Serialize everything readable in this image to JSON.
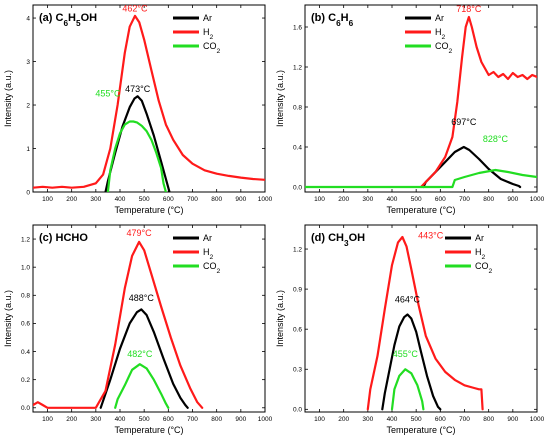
{
  "colors": {
    "Ar": "#000000",
    "H2": "#ff1a1a",
    "CO2": "#22dd22"
  },
  "chart_data": [
    {
      "type": "line",
      "panel_label": "(a)",
      "compound_parts": [
        [
          "C",
          ""
        ],
        [
          "6",
          "sub"
        ],
        [
          "H",
          ""
        ],
        [
          "5",
          "sub"
        ],
        [
          "OH",
          ""
        ]
      ],
      "xlabel": "Temperature (°C)",
      "ylabel": "Intensity (a.u.)",
      "xlim": [
        40,
        1000
      ],
      "ylim": [
        0,
        4.3
      ],
      "xticks": [
        100,
        200,
        300,
        400,
        500,
        600,
        700,
        800,
        900,
        1000
      ],
      "yticks": [
        0,
        1,
        2,
        3,
        4
      ],
      "legend_position": "top-right",
      "series": [
        {
          "name": "Ar",
          "color_key": "Ar",
          "x": [
            340,
            350,
            380,
            410,
            440,
            460,
            473,
            490,
            510,
            540,
            570,
            590,
            600,
            605
          ],
          "y": [
            0,
            0.25,
            0.9,
            1.5,
            1.95,
            2.15,
            2.2,
            2.1,
            1.8,
            1.3,
            0.7,
            0.3,
            0.1,
            0
          ]
        },
        {
          "name": "H2",
          "color_key": "H2",
          "x": [
            40,
            80,
            120,
            160,
            200,
            250,
            300,
            330,
            360,
            390,
            420,
            440,
            462,
            480,
            500,
            530,
            560,
            590,
            620,
            660,
            700,
            750,
            800,
            850,
            900,
            950,
            1000
          ],
          "y": [
            0.1,
            0.12,
            0.1,
            0.12,
            0.1,
            0.12,
            0.2,
            0.4,
            1.0,
            2.0,
            3.2,
            3.8,
            4.05,
            3.9,
            3.5,
            2.8,
            2.1,
            1.55,
            1.2,
            0.85,
            0.65,
            0.5,
            0.42,
            0.37,
            0.33,
            0.3,
            0.28
          ]
        },
        {
          "name": "CO2",
          "color_key": "CO2",
          "x": [
            350,
            360,
            380,
            400,
            420,
            440,
            455,
            470,
            490,
            510,
            530,
            550,
            570,
            580,
            590
          ],
          "y": [
            0,
            0.5,
            1.0,
            1.35,
            1.55,
            1.62,
            1.62,
            1.6,
            1.52,
            1.4,
            1.2,
            0.9,
            0.55,
            0.2,
            0
          ]
        }
      ],
      "annotations": [
        {
          "text": "462°C",
          "color_key": "H2",
          "x": 462,
          "y": 4.15
        },
        {
          "text": "473°C",
          "color_key": "Ar",
          "x": 473,
          "y": 2.3
        },
        {
          "text": "455°C",
          "color_key": "CO2",
          "x": 350,
          "y": 2.2
        }
      ]
    },
    {
      "type": "line",
      "panel_label": "(b)",
      "compound_parts": [
        [
          "C",
          ""
        ],
        [
          "6",
          "sub"
        ],
        [
          "H",
          ""
        ],
        [
          "6",
          "sub"
        ]
      ],
      "xlabel": "Temperature (°C)",
      "ylabel": "Intensity (a.u.)",
      "xlim": [
        40,
        1000
      ],
      "ylim": [
        -0.05,
        1.82
      ],
      "xticks": [
        100,
        200,
        300,
        400,
        500,
        600,
        700,
        800,
        900,
        1000
      ],
      "yticks": [
        0,
        0.4,
        0.8,
        1.2,
        1.6
      ],
      "legend_position": "top-left",
      "series": [
        {
          "name": "Ar",
          "color_key": "Ar",
          "x": [
            530,
            540,
            580,
            620,
            660,
            697,
            720,
            760,
            800,
            850,
            900,
            925,
            930
          ],
          "y": [
            0,
            0.05,
            0.15,
            0.25,
            0.35,
            0.4,
            0.37,
            0.28,
            0.18,
            0.08,
            0.03,
            0.01,
            0
          ]
        },
        {
          "name": "H2",
          "color_key": "H2",
          "x": [
            520,
            540,
            580,
            620,
            650,
            670,
            690,
            705,
            718,
            730,
            750,
            770,
            800,
            820,
            840,
            860,
            880,
            900,
            920,
            940,
            960,
            980,
            1000
          ],
          "y": [
            0,
            0.05,
            0.15,
            0.3,
            0.5,
            0.85,
            1.3,
            1.6,
            1.7,
            1.6,
            1.4,
            1.25,
            1.12,
            1.15,
            1.1,
            1.13,
            1.08,
            1.14,
            1.1,
            1.12,
            1.08,
            1.12,
            1.1
          ]
        },
        {
          "name": "CO2",
          "color_key": "CO2",
          "x": [
            40,
            200,
            400,
            600,
            650,
            660,
            700,
            760,
            828,
            880,
            940,
            1000
          ],
          "y": [
            0,
            0,
            0,
            0,
            0,
            0.07,
            0.1,
            0.14,
            0.17,
            0.15,
            0.12,
            0.1
          ]
        }
      ],
      "annotations": [
        {
          "text": "718°C",
          "color_key": "H2",
          "x": 718,
          "y": 1.75
        },
        {
          "text": "697°C",
          "color_key": "Ar",
          "x": 697,
          "y": 0.62
        },
        {
          "text": "828°C",
          "color_key": "CO2",
          "x": 828,
          "y": 0.45
        }
      ]
    },
    {
      "type": "line",
      "panel_label": "(c)",
      "compound_text": "HCHO",
      "xlabel": "Temperature (°C)",
      "ylabel": "Intensity (a.u.)",
      "xlim": [
        40,
        1000
      ],
      "ylim": [
        -0.03,
        1.3
      ],
      "xticks": [
        100,
        200,
        300,
        400,
        500,
        600,
        700,
        800,
        900,
        1000
      ],
      "yticks": [
        0,
        0.2,
        0.4,
        0.6,
        0.8,
        1.0,
        1.2
      ],
      "legend_position": "top-right",
      "series": [
        {
          "name": "Ar",
          "color_key": "Ar",
          "x": [
            320,
            330,
            360,
            400,
            440,
            470,
            488,
            510,
            540,
            580,
            620,
            650,
            670,
            680
          ],
          "y": [
            0,
            0.05,
            0.2,
            0.42,
            0.6,
            0.68,
            0.7,
            0.66,
            0.54,
            0.35,
            0.17,
            0.07,
            0.02,
            0
          ]
        },
        {
          "name": "H2",
          "color_key": "H2",
          "x": [
            40,
            60,
            80,
            100,
            200,
            300,
            340,
            380,
            420,
            450,
            479,
            500,
            530,
            570,
            610,
            650,
            690,
            720,
            740
          ],
          "y": [
            0.02,
            0.04,
            0.02,
            0,
            0,
            0,
            0.12,
            0.45,
            0.85,
            1.08,
            1.18,
            1.12,
            0.95,
            0.72,
            0.5,
            0.3,
            0.14,
            0.04,
            0
          ]
        },
        {
          "name": "CO2",
          "color_key": "CO2",
          "x": [
            380,
            390,
            420,
            450,
            482,
            510,
            540,
            570,
            590,
            600
          ],
          "y": [
            0,
            0.06,
            0.16,
            0.27,
            0.31,
            0.28,
            0.2,
            0.1,
            0.03,
            0
          ]
        }
      ],
      "annotations": [
        {
          "text": "479°C",
          "color_key": "H2",
          "x": 479,
          "y": 1.22
        },
        {
          "text": "488°C",
          "color_key": "Ar",
          "x": 488,
          "y": 0.76
        },
        {
          "text": "482°C",
          "color_key": "CO2",
          "x": 482,
          "y": 0.36
        }
      ]
    },
    {
      "type": "line",
      "panel_label": "(d)",
      "compound_parts": [
        [
          "CH",
          ""
        ],
        [
          "3",
          "sub"
        ],
        [
          "OH",
          ""
        ]
      ],
      "xlabel": "Temperature (°C)",
      "ylabel": "Intensity (a.u.)",
      "xlim": [
        40,
        1000
      ],
      "ylim": [
        -0.02,
        1.38
      ],
      "xticks": [
        100,
        200,
        300,
        400,
        500,
        600,
        700,
        800,
        900,
        1000
      ],
      "yticks": [
        0,
        0.3,
        0.6,
        0.9,
        1.2
      ],
      "legend_position": "top-right",
      "series": [
        {
          "name": "Ar",
          "color_key": "Ar",
          "x": [
            360,
            370,
            390,
            410,
            430,
            450,
            464,
            480,
            500,
            520,
            545,
            570,
            590,
            600
          ],
          "y": [
            0,
            0.12,
            0.3,
            0.48,
            0.62,
            0.69,
            0.71,
            0.68,
            0.58,
            0.43,
            0.25,
            0.1,
            0.02,
            0
          ]
        },
        {
          "name": "H2",
          "color_key": "H2",
          "x": [
            300,
            310,
            340,
            370,
            400,
            425,
            443,
            460,
            480,
            510,
            540,
            580,
            620,
            660,
            700,
            740,
            760,
            770,
            775
          ],
          "y": [
            0,
            0.15,
            0.4,
            0.75,
            1.08,
            1.25,
            1.29,
            1.22,
            1.05,
            0.78,
            0.55,
            0.38,
            0.28,
            0.22,
            0.18,
            0.16,
            0.15,
            0.15,
            0
          ]
        },
        {
          "name": "CO2",
          "color_key": "CO2",
          "x": [
            400,
            410,
            430,
            455,
            480,
            505,
            525,
            530
          ],
          "y": [
            0,
            0.15,
            0.25,
            0.3,
            0.27,
            0.18,
            0.06,
            0
          ]
        }
      ],
      "annotations": [
        {
          "text": "443°C",
          "color_key": "H2",
          "x": 560,
          "y": 1.28
        },
        {
          "text": "464°C",
          "color_key": "Ar",
          "x": 464,
          "y": 0.8
        },
        {
          "text": "455°C",
          "color_key": "CO2",
          "x": 455,
          "y": 0.39
        }
      ]
    }
  ],
  "legend_items": [
    {
      "label_parts": [
        [
          "Ar",
          ""
        ]
      ],
      "color_key": "Ar"
    },
    {
      "label_parts": [
        [
          "H",
          ""
        ],
        [
          "2",
          "sub"
        ]
      ],
      "color_key": "H2"
    },
    {
      "label_parts": [
        [
          "CO",
          ""
        ],
        [
          "2",
          "sub"
        ]
      ],
      "color_key": "CO2"
    }
  ]
}
